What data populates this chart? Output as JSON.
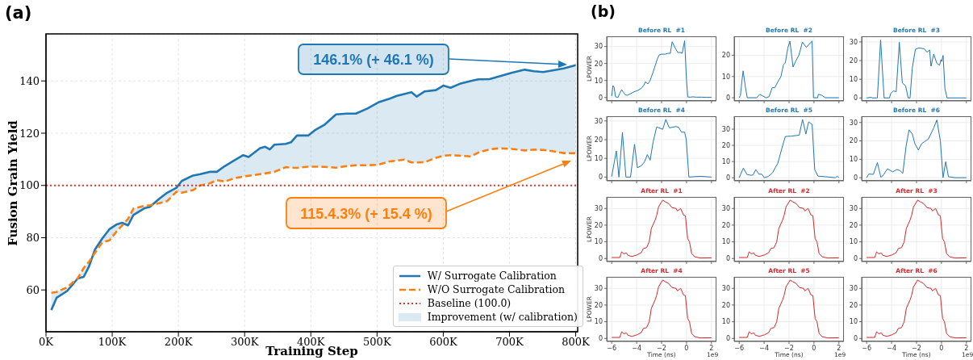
{
  "chart_data": [
    {
      "type": "line",
      "title": "(a)",
      "xlabel": "Training Step",
      "ylabel": "Fusion Grain Yield",
      "x": [
        8000,
        16000,
        32000,
        48000,
        57000,
        65000,
        74000,
        85000,
        96000,
        107000,
        115000,
        124000,
        132000,
        149000,
        157000,
        171000,
        183000,
        197000,
        205000,
        222000,
        233000,
        247000,
        258000,
        270000,
        284000,
        298000,
        306000,
        323000,
        331000,
        338000,
        345000,
        362000,
        370000,
        379000,
        396000,
        407000,
        421000,
        438000,
        454000,
        468000,
        485000,
        502000,
        519000,
        530000,
        541000,
        552000,
        560000,
        572000,
        589000,
        600000,
        611000,
        625000,
        642000,
        653000,
        670000,
        684000,
        703000,
        723000,
        737000,
        751000,
        765000,
        782000,
        800000
      ],
      "xlim": [
        0,
        803000
      ],
      "xticks": [
        {
          "value": 0,
          "label": "0K"
        },
        {
          "value": 100000,
          "label": "100K"
        },
        {
          "value": 200000,
          "label": "200K"
        },
        {
          "value": 300000,
          "label": "300K"
        },
        {
          "value": 400000,
          "label": "400K"
        },
        {
          "value": 500000,
          "label": "500K"
        },
        {
          "value": 600000,
          "label": "600K"
        },
        {
          "value": 700000,
          "label": "700K"
        },
        {
          "value": 800000,
          "label": "800K"
        }
      ],
      "ylim": [
        44,
        158
      ],
      "yticks": [
        60,
        80,
        100,
        120,
        140
      ],
      "grid": true,
      "legend": "bottom right",
      "series": [
        {
          "name": "W/ Surrogate Calibration",
          "color": "#1f77b4",
          "line_style": "solid",
          "lower": [
            58.9,
            59.2,
            61,
            64.5,
            68.4,
            70.8,
            74.2,
            78.2,
            79,
            82.5,
            84.7,
            87.2,
            91.1,
            92.2,
            92.4,
            93.2,
            94,
            97.6,
            97.2,
            98.2,
            100,
            100.8,
            102,
            101.5,
            102.7,
            103.4,
            103.7,
            104.3,
            104.6,
            104.9,
            105.2,
            107,
            106.8,
            106.7,
            107.2,
            107.2,
            107.1,
            106.8,
            107.4,
            107.7,
            107.7,
            107.9,
            109.2,
            109.5,
            109.9,
            108.8,
            108.8,
            108.9,
            110.6,
            111.4,
            111.6,
            111.4,
            111.1,
            112.6,
            113.8,
            114.2,
            114,
            113.4,
            113.7,
            113.6,
            113.1,
            112.4,
            112.3
          ],
          "upper": [
            52.3,
            57,
            59.6,
            64.4,
            65,
            69,
            75.5,
            79.7,
            83.3,
            85.1,
            85.7,
            84.7,
            88.7,
            91.3,
            91.8,
            94.9,
            97.2,
            99.1,
            101.7,
            103.8,
            104.3,
            105.2,
            105.2,
            107.4,
            109.5,
            111.6,
            110.9,
            114.2,
            114.8,
            113.8,
            115.6,
            115.9,
            116.5,
            119.1,
            119.1,
            121.3,
            123.3,
            127.2,
            127.5,
            127.5,
            129.4,
            131.8,
            133.2,
            134.3,
            135,
            135.7,
            134,
            136,
            136.5,
            138.2,
            137.4,
            138.9,
            140,
            140.6,
            140.7,
            141.7,
            143.1,
            144.3,
            143.7,
            143.4,
            144,
            144.8,
            146
          ],
          "values": [
            52.3,
            57,
            59.6,
            64.4,
            65,
            69,
            75.5,
            79.7,
            83.3,
            85.1,
            85.7,
            84.7,
            88.7,
            91.3,
            91.8,
            94.9,
            97.2,
            99.1,
            101.7,
            103.8,
            104.3,
            105.2,
            105.2,
            107.4,
            109.5,
            111.6,
            110.9,
            114.2,
            114.8,
            113.8,
            115.6,
            115.9,
            116.5,
            119.1,
            119.1,
            121.3,
            123.3,
            127.2,
            127.5,
            127.5,
            129.4,
            131.8,
            133.2,
            134.3,
            135,
            135.7,
            134,
            136,
            136.5,
            138.2,
            137.4,
            138.9,
            140,
            140.6,
            140.7,
            141.7,
            143.1,
            144.3,
            143.7,
            143.4,
            144,
            144.8,
            146
          ]
        },
        {
          "name": "W/O Surrogate Calibration",
          "color": "#ff7f0e",
          "line_style": "dashed",
          "values": [
            58.9,
            59.2,
            61,
            64.5,
            68.4,
            70.8,
            74.2,
            78.2,
            79,
            82.5,
            84.7,
            87.2,
            91.1,
            92.2,
            92.4,
            93.2,
            94,
            97.6,
            97.2,
            98.2,
            100,
            100.8,
            102,
            101.5,
            102.7,
            103.4,
            103.7,
            104.3,
            104.6,
            104.9,
            105.2,
            107,
            106.8,
            106.7,
            107.2,
            107.2,
            107.1,
            106.8,
            107.4,
            107.7,
            107.7,
            107.9,
            109.2,
            109.5,
            109.9,
            108.8,
            108.8,
            108.9,
            110.6,
            111.4,
            111.6,
            111.4,
            111.1,
            112.6,
            113.8,
            114.2,
            114,
            113.4,
            113.7,
            113.6,
            113.1,
            112.4,
            112.3
          ]
        }
      ],
      "ref_lines": [
        {
          "axis": "y",
          "value": 100,
          "label": "Baseline (100.0)",
          "color": "#e8312a",
          "line_style": "dotted"
        }
      ],
      "annotations": [
        "146.1% (+ 46.1 %)",
        "115.4.3% (+ 15.4 %)",
        "Improvement (w/ calibration)"
      ]
    },
    {
      "type": "line",
      "title": "Before RL  #1",
      "ylabel": "LPOWER",
      "annotations": [
        "(b)"
      ],
      "x": [
        -6,
        -5.9,
        -5.8,
        -5.7,
        -5.5,
        -5.35,
        -5.2,
        -5.05,
        -4.9,
        -4.75,
        -4.5,
        -4.2,
        -3.9,
        -3.6,
        -3.4,
        -3.3,
        -3.1,
        -2.95,
        -2.7,
        -2.5,
        -2.35,
        -2.2,
        -2,
        -1.7,
        -1.5,
        -1.3,
        -1.15,
        -0.9,
        -0.7,
        -0.5,
        -0.35,
        -0.15,
        0,
        0.1,
        0.3,
        0.5,
        0.8,
        1.2,
        1.6,
        2
      ],
      "xlim": [
        -6.4,
        2.4
      ],
      "xticks": [
        -6,
        -4,
        -2,
        0,
        2
      ],
      "ylim": [
        -2,
        36
      ],
      "yticks": [
        0,
        10,
        20,
        30
      ],
      "grid": true,
      "tick_labels": "y",
      "series": [
        {
          "color": "#1f77b4",
          "values": [
            0.8,
            7,
            6,
            0.5,
            0,
            2.5,
            4.6,
            3,
            1.5,
            1.3,
            2.2,
            3.4,
            4.2,
            5.5,
            7.5,
            9.2,
            8,
            9.5,
            14.5,
            19,
            22.5,
            25,
            25.5,
            25.5,
            26,
            26,
            32.8,
            29,
            26.5,
            26.5,
            26,
            33.4,
            10,
            0.3,
            0.2,
            0.4,
            0.2,
            0.2,
            0.1,
            0.1
          ]
        }
      ]
    },
    {
      "type": "line",
      "title": "Before RL  #2",
      "x": [
        -6,
        -5.9,
        -5.78,
        -5.68,
        -5.5,
        -5.35,
        -4.6,
        -4.35,
        -4.1,
        -3.85,
        -3.6,
        -3.35,
        -3.15,
        -2.9,
        -2.65,
        -2.45,
        -2.3,
        -2.1,
        -1.93,
        -1.68,
        -1.45,
        -1.2,
        -0.93,
        -0.62,
        -0.15,
        -0.04,
        0.3,
        0.35,
        0.6,
        0.9,
        2
      ],
      "xlim": [
        -6.4,
        2.4
      ],
      "xticks": [
        -6,
        -4,
        -2,
        0,
        2
      ],
      "ylim": [
        -1.5,
        29
      ],
      "yticks": [
        0,
        10,
        20
      ],
      "grid": true,
      "tick_labels": "y",
      "series": [
        {
          "color": "#1f77b4",
          "values": [
            0,
            1,
            8,
            12.7,
            5,
            0,
            0,
            1.6,
            0.8,
            0,
            0.5,
            4.8,
            4.7,
            7.5,
            10,
            15.5,
            16.5,
            23.5,
            26.7,
            14.5,
            17.5,
            20.2,
            26.3,
            23.8,
            26.8,
            0,
            0,
            1.6,
            1.2,
            0,
            0
          ]
        }
      ]
    },
    {
      "type": "line",
      "title": "Before RL  #3",
      "x": [
        -6,
        -5.68,
        -5.5,
        -5.14,
        -4.88,
        -4.6,
        -4.17,
        -4.06,
        -3.85,
        -3.63,
        -3.38,
        -3.14,
        -2.88,
        -2.67,
        -2.52,
        -2.34,
        -2.09,
        -1.81,
        -1.38,
        -1.16,
        -0.95,
        -0.84,
        -0.62,
        -0.37,
        -0.15,
        -0.04,
        0.02,
        0.13,
        0.28,
        0.45,
        2
      ],
      "xlim": [
        -6.4,
        2.4
      ],
      "xticks": [
        -6,
        -4,
        -2,
        0,
        2
      ],
      "ylim": [
        -1.6,
        33
      ],
      "yticks": [
        0,
        10,
        20,
        30
      ],
      "grid": true,
      "tick_labels": "y",
      "series": [
        {
          "color": "#1f77b4",
          "values": [
            0,
            0.3,
            0,
            0,
            31,
            0,
            0,
            2.5,
            3.8,
            3.3,
            29.8,
            8,
            6.5,
            0,
            0,
            16,
            26,
            26.8,
            26.3,
            24.5,
            25.7,
            17,
            23.5,
            18.5,
            17.5,
            20.5,
            19.5,
            22.8,
            5,
            0,
            0
          ]
        }
      ]
    },
    {
      "type": "line",
      "title": "Before RL  #4",
      "ylabel": "LPOWER",
      "x": [
        -6,
        -5.63,
        -5.42,
        -5.14,
        -4.86,
        -4.49,
        -4.17,
        -3.94,
        -3.63,
        -3.38,
        -3.14,
        -2.92,
        -2.67,
        -2.39,
        -1.91,
        -1.66,
        -1.38,
        -0.84,
        -0.62,
        -0.41,
        -0.15,
        -0.02,
        0.19,
        1.1,
        2
      ],
      "xlim": [
        -6.4,
        2.4
      ],
      "xticks": [
        -6,
        -4,
        -2,
        0,
        2
      ],
      "ylim": [
        -2,
        32.5
      ],
      "yticks": [
        0,
        10,
        20,
        30
      ],
      "grid": true,
      "tick_labels": "y",
      "series": [
        {
          "color": "#1f77b4",
          "values": [
            0.3,
            14,
            0,
            23.8,
            0,
            0,
            17.5,
            5,
            6,
            8,
            12,
            9,
            19,
            26.8,
            25.5,
            30.8,
            26.3,
            27,
            26.5,
            24,
            24,
            20,
            0,
            0.4,
            0
          ]
        }
      ]
    },
    {
      "type": "line",
      "title": "Before RL  #5",
      "x": [
        -6,
        -5.66,
        -5.38,
        -5.05,
        -4.88,
        -4.67,
        -4.41,
        -4.19,
        -3.98,
        -3.66,
        -3.33,
        -2.9,
        -2.58,
        -2.3,
        -1.83,
        -1.18,
        -0.92,
        -0.65,
        -0.43,
        -0.15,
        0.06,
        0.32,
        0.97,
        1.72,
        1.83,
        2
      ],
      "xlim": [
        -6.4,
        2.4
      ],
      "xticks": [
        -6,
        -4,
        -2,
        0,
        2
      ],
      "ylim": [
        -1.9,
        38
      ],
      "yticks": [
        0,
        10,
        20,
        30
      ],
      "grid": true,
      "tick_labels": "y",
      "series": [
        {
          "color": "#1f77b4",
          "values": [
            0,
            6,
            2,
            1.5,
            1.8,
            5,
            2.2,
            2.2,
            0,
            0.8,
            3,
            9,
            18,
            25.5,
            25.7,
            26.3,
            36,
            27,
            34.5,
            33,
            5,
            1,
            0.6,
            0,
            0.8,
            0.3
          ]
        }
      ]
    },
    {
      "type": "line",
      "title": "Before RL  #6",
      "x": [
        -6,
        -5.83,
        -5.46,
        -5.14,
        -4.86,
        -4.65,
        -4.34,
        -3.91,
        -3.57,
        -3.31,
        -3.1,
        -2.84,
        -2.6,
        -2.34,
        -2.13,
        -1.85,
        -1.59,
        -1.38,
        -1.05,
        -0.62,
        -0.37,
        -0.09,
        0.13,
        0.34,
        0.56,
        1.1,
        2
      ],
      "xlim": [
        -6.4,
        2.4
      ],
      "xticks": [
        -6,
        -4,
        -2,
        0,
        2
      ],
      "ylim": [
        -1.7,
        33.4
      ],
      "yticks": [
        0,
        10,
        20,
        30
      ],
      "grid": true,
      "tick_labels": "y",
      "series": [
        {
          "color": "#1f77b4",
          "values": [
            0,
            2,
            1.8,
            8.2,
            0.2,
            1.5,
            4.8,
            3.2,
            4.4,
            3.8,
            2.4,
            17,
            26,
            23.8,
            18.5,
            15,
            18.5,
            19.5,
            21,
            27,
            31.4,
            20,
            0,
            8.7,
            0.5,
            0,
            0
          ]
        }
      ]
    },
    {
      "type": "line",
      "title": "After RL  #1",
      "ylabel": "LPOWER",
      "x": [
        -6,
        -5.35,
        -5.2,
        -5.03,
        -4.82,
        -4.71,
        -4.39,
        -3.96,
        -3.63,
        -3.46,
        -3.2,
        -2.99,
        -2.82,
        -2.52,
        -2.39,
        -2.24,
        -1.91,
        -1.7,
        -1.44,
        -1.16,
        -0.84,
        -0.73,
        -0.47,
        -0.24,
        -0.09,
        0.09,
        0.24,
        0.41,
        0.67,
        1.1,
        2
      ],
      "xlim": [
        -6.4,
        2.4
      ],
      "xticks": [
        -6,
        -4,
        -2,
        0,
        2
      ],
      "ylim": [
        -1.8,
        36.9
      ],
      "yticks": [
        0,
        10,
        20,
        30
      ],
      "grid": true,
      "tick_labels": "y",
      "series": [
        {
          "color": "#d62728",
          "values": [
            0.6,
            0.6,
            4,
            2.8,
            3.3,
            2,
            1.2,
            2.2,
            3.5,
            6,
            6.5,
            10,
            18,
            23,
            26,
            31,
            35,
            34,
            33,
            30.5,
            30,
            28.5,
            30,
            26,
            25.7,
            12,
            10,
            3,
            1,
            0.3,
            0.4
          ]
        }
      ]
    },
    {
      "type": "line",
      "title": "After RL  #2",
      "x": [
        -6,
        -5.35,
        -5.2,
        -5.03,
        -4.82,
        -4.71,
        -4.39,
        -3.96,
        -3.63,
        -3.46,
        -3.2,
        -2.99,
        -2.82,
        -2.52,
        -2.39,
        -2.24,
        -1.91,
        -1.7,
        -1.44,
        -1.16,
        -0.84,
        -0.73,
        -0.47,
        -0.24,
        -0.09,
        0.09,
        0.24,
        0.41,
        0.67,
        1.1,
        2
      ],
      "xlim": [
        -6.4,
        2.4
      ],
      "xticks": [
        -6,
        -4,
        -2,
        0,
        2
      ],
      "ylim": [
        -1.8,
        36.9
      ],
      "yticks": [
        0,
        10,
        20,
        30
      ],
      "grid": true,
      "tick_labels": "y",
      "series": [
        {
          "color": "#d62728",
          "values": [
            0.6,
            0.6,
            4,
            2.8,
            3.3,
            2,
            1.2,
            2.2,
            3.5,
            6,
            6.5,
            10,
            18,
            23,
            26,
            31,
            35,
            34,
            33,
            30.5,
            30,
            28.5,
            30,
            26,
            25.7,
            12,
            10,
            3,
            1,
            0.3,
            0.4
          ]
        }
      ]
    },
    {
      "type": "line",
      "title": "After RL  #3",
      "x": [
        -6,
        -5.35,
        -5.2,
        -5.03,
        -4.82,
        -4.71,
        -4.39,
        -3.96,
        -3.63,
        -3.46,
        -3.2,
        -2.99,
        -2.82,
        -2.52,
        -2.39,
        -2.24,
        -1.91,
        -1.7,
        -1.44,
        -1.16,
        -0.84,
        -0.73,
        -0.47,
        -0.24,
        -0.09,
        0.09,
        0.24,
        0.41,
        0.67,
        1.1,
        2
      ],
      "xlim": [
        -6.4,
        2.4
      ],
      "xticks": [
        -6,
        -4,
        -2,
        0,
        2
      ],
      "ylim": [
        -1.8,
        36.9
      ],
      "yticks": [
        0,
        10,
        20,
        30
      ],
      "grid": true,
      "tick_labels": "y",
      "series": [
        {
          "color": "#d62728",
          "values": [
            0.6,
            0.6,
            4,
            2.8,
            3.3,
            2,
            1.2,
            2.2,
            3.5,
            6,
            6.5,
            10,
            18,
            23,
            26,
            31,
            35,
            34,
            33,
            30.5,
            30,
            28.5,
            30,
            26,
            25.7,
            12,
            10,
            3,
            1,
            0.3,
            0.4
          ]
        }
      ]
    },
    {
      "type": "line",
      "title": "After RL  #4",
      "ylabel": "LPOWER",
      "xlabel": "Time (ns)",
      "annotations": [
        "1e9"
      ],
      "x": [
        -6,
        -5.35,
        -5.2,
        -5.03,
        -4.82,
        -4.71,
        -4.39,
        -3.96,
        -3.63,
        -3.46,
        -3.2,
        -2.99,
        -2.82,
        -2.52,
        -2.39,
        -2.24,
        -1.91,
        -1.7,
        -1.44,
        -1.16,
        -0.84,
        -0.73,
        -0.47,
        -0.24,
        -0.09,
        0.09,
        0.24,
        0.41,
        0.67,
        1.1,
        2
      ],
      "xlim": [
        -6.4,
        2.4
      ],
      "xticks": [
        {
          "value": -6,
          "label": "−6"
        },
        {
          "value": -4,
          "label": "−4"
        },
        {
          "value": -2,
          "label": "−2"
        },
        0,
        2
      ],
      "ylim": [
        -1.8,
        36.9
      ],
      "yticks": [
        0,
        10,
        20,
        30
      ],
      "grid": true,
      "series": [
        {
          "color": "#d62728",
          "values": [
            0.6,
            0.6,
            4,
            2.8,
            3.3,
            2,
            1.2,
            2.2,
            3.5,
            6,
            6.5,
            10,
            18,
            23,
            26,
            31,
            35,
            34,
            33,
            30.5,
            30,
            28.5,
            30,
            26,
            25.7,
            12,
            10,
            3,
            1,
            0.3,
            0.4
          ]
        }
      ]
    },
    {
      "type": "line",
      "title": "After RL  #5",
      "xlabel": "Time (ns)",
      "annotations": [
        "1e9"
      ],
      "x": [
        -6,
        -5.35,
        -5.2,
        -5.03,
        -4.82,
        -4.71,
        -4.39,
        -3.96,
        -3.63,
        -3.46,
        -3.2,
        -2.99,
        -2.82,
        -2.52,
        -2.39,
        -2.24,
        -1.91,
        -1.7,
        -1.44,
        -1.16,
        -0.84,
        -0.73,
        -0.47,
        -0.24,
        -0.09,
        0.09,
        0.24,
        0.41,
        0.67,
        1.1,
        2
      ],
      "xlim": [
        -6.4,
        2.4
      ],
      "xticks": [
        {
          "value": -6,
          "label": "−6"
        },
        {
          "value": -4,
          "label": "−4"
        },
        {
          "value": -2,
          "label": "−2"
        },
        0,
        2
      ],
      "ylim": [
        -1.8,
        36.9
      ],
      "yticks": [
        0,
        10,
        20,
        30
      ],
      "grid": true,
      "series": [
        {
          "color": "#d62728",
          "values": [
            0.6,
            0.6,
            4,
            2.8,
            3.3,
            2,
            1.2,
            2.2,
            3.5,
            6,
            6.5,
            10,
            18,
            23,
            26,
            31,
            35,
            34,
            33,
            30.5,
            30,
            28.5,
            30,
            26,
            25.7,
            12,
            10,
            3,
            1,
            0.3,
            0.4
          ]
        }
      ]
    },
    {
      "type": "line",
      "title": "After RL  #6",
      "xlabel": "Time (ns)",
      "annotations": [
        "1e9"
      ],
      "x": [
        -6,
        -5.35,
        -5.2,
        -5.03,
        -4.82,
        -4.71,
        -4.39,
        -3.96,
        -3.63,
        -3.46,
        -3.2,
        -2.99,
        -2.82,
        -2.52,
        -2.39,
        -2.24,
        -1.91,
        -1.7,
        -1.44,
        -1.16,
        -0.84,
        -0.73,
        -0.47,
        -0.24,
        -0.09,
        0.09,
        0.24,
        0.41,
        0.67,
        1.1,
        2
      ],
      "xlim": [
        -6.4,
        2.4
      ],
      "xticks": [
        {
          "value": -6,
          "label": "−6"
        },
        {
          "value": -4,
          "label": "−4"
        },
        {
          "value": -2,
          "label": "−2"
        },
        0,
        2
      ],
      "ylim": [
        -1.8,
        36.9
      ],
      "yticks": [
        0,
        10,
        20,
        30
      ],
      "grid": true,
      "series": [
        {
          "color": "#d62728",
          "values": [
            0.6,
            0.6,
            4,
            2.8,
            3.3,
            2,
            1.2,
            2.2,
            3.5,
            6,
            6.5,
            10,
            18,
            23,
            26,
            31,
            35,
            34,
            33,
            30.5,
            30,
            28.5,
            30,
            26,
            25.7,
            12,
            10,
            3,
            1,
            0.3,
            0.4
          ]
        }
      ]
    }
  ]
}
